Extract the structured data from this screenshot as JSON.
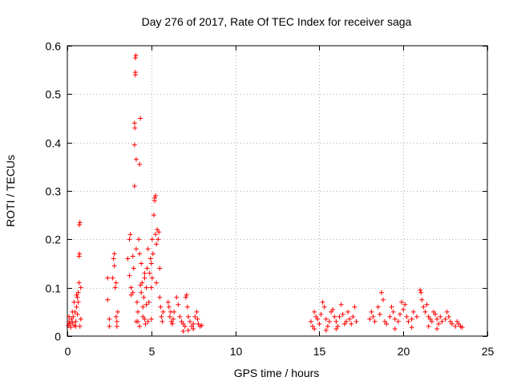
{
  "chart_data": {
    "type": "scatter",
    "title": "Day 276 of 2017, Rate Of TEC Index for receiver saga",
    "xlabel": "GPS time / hours",
    "ylabel": "ROTI / TECUs",
    "xlim": [
      0,
      25
    ],
    "ylim": [
      0,
      0.6
    ],
    "xticks": [
      0,
      5,
      10,
      15,
      20,
      25
    ],
    "yticks": [
      0,
      0.1,
      0.2,
      0.3,
      0.4,
      0.5,
      0.6
    ],
    "grid": true,
    "marker": "+",
    "color": "#ff0000",
    "series": [
      {
        "name": "ROTI",
        "points": [
          [
            0.05,
            0.022
          ],
          [
            0.1,
            0.03
          ],
          [
            0.15,
            0.025
          ],
          [
            0.2,
            0.018
          ],
          [
            0.25,
            0.035
          ],
          [
            0.3,
            0.028
          ],
          [
            0.35,
            0.04
          ],
          [
            0.4,
            0.022
          ],
          [
            0.45,
            0.05
          ],
          [
            0.5,
            0.03
          ],
          [
            0.55,
            0.06
          ],
          [
            0.6,
            0.045
          ],
          [
            0.6,
            0.08
          ],
          [
            0.65,
            0.07
          ],
          [
            0.65,
            0.09
          ],
          [
            0.7,
            0.11
          ],
          [
            0.7,
            0.165
          ],
          [
            0.72,
            0.17
          ],
          [
            0.72,
            0.23
          ],
          [
            0.75,
            0.235
          ],
          [
            0.75,
            0.02
          ],
          [
            0.8,
            0.035
          ],
          [
            0.8,
            0.1
          ],
          [
            0.1,
            0.04
          ],
          [
            0.3,
            0.05
          ],
          [
            0.5,
            0.02
          ],
          [
            0.4,
            0.07
          ],
          [
            0.55,
            0.085
          ],
          [
            2.4,
            0.12
          ],
          [
            2.4,
            0.075
          ],
          [
            2.5,
            0.035
          ],
          [
            2.5,
            0.02
          ],
          [
            2.7,
            0.12
          ],
          [
            2.75,
            0.16
          ],
          [
            2.8,
            0.17
          ],
          [
            2.8,
            0.145
          ],
          [
            2.85,
            0.1
          ],
          [
            2.9,
            0.11
          ],
          [
            2.9,
            0.04
          ],
          [
            2.95,
            0.03
          ],
          [
            2.95,
            0.02
          ],
          [
            3.0,
            0.05
          ],
          [
            3.6,
            0.16
          ],
          [
            3.7,
            0.2
          ],
          [
            3.75,
            0.21
          ],
          [
            3.7,
            0.125
          ],
          [
            3.8,
            0.1
          ],
          [
            3.8,
            0.085
          ],
          [
            3.9,
            0.165
          ],
          [
            3.95,
            0.14
          ],
          [
            4.0,
            0.31
          ],
          [
            4.0,
            0.395
          ],
          [
            4.0,
            0.44
          ],
          [
            4.02,
            0.43
          ],
          [
            4.05,
            0.54
          ],
          [
            4.05,
            0.545
          ],
          [
            4.05,
            0.575
          ],
          [
            4.08,
            0.58
          ],
          [
            4.1,
            0.365
          ],
          [
            4.15,
            0.07
          ],
          [
            4.2,
            0.05
          ],
          [
            4.2,
            0.03
          ],
          [
            4.25,
            0.2
          ],
          [
            4.3,
            0.17
          ],
          [
            4.3,
            0.355
          ],
          [
            4.35,
            0.45
          ],
          [
            4.35,
            0.105
          ],
          [
            4.4,
            0.09
          ],
          [
            4.4,
            0.15
          ],
          [
            4.45,
            0.11
          ],
          [
            4.5,
            0.04
          ],
          [
            4.5,
            0.06
          ],
          [
            4.55,
            0.08
          ],
          [
            4.6,
            0.12
          ],
          [
            4.6,
            0.035
          ],
          [
            4.65,
            0.025
          ],
          [
            4.7,
            0.1
          ],
          [
            4.7,
            0.065
          ],
          [
            4.75,
            0.14
          ],
          [
            4.8,
            0.18
          ],
          [
            4.85,
            0.07
          ],
          [
            4.9,
            0.13
          ],
          [
            4.95,
            0.16
          ],
          [
            5.0,
            0.15
          ],
          [
            5.0,
            0.1
          ],
          [
            5.05,
            0.12
          ],
          [
            5.05,
            0.2
          ],
          [
            5.1,
            0.17
          ],
          [
            5.15,
            0.25
          ],
          [
            5.2,
            0.285
          ],
          [
            5.2,
            0.28
          ],
          [
            5.25,
            0.29
          ],
          [
            5.25,
            0.21
          ],
          [
            5.3,
            0.19
          ],
          [
            5.3,
            0.11
          ],
          [
            5.35,
            0.22
          ],
          [
            5.4,
            0.2
          ],
          [
            5.45,
            0.215
          ],
          [
            5.5,
            0.14
          ],
          [
            5.5,
            0.08
          ],
          [
            5.55,
            0.06
          ],
          [
            5.6,
            0.04
          ],
          [
            5.65,
            0.03
          ],
          [
            5.7,
            0.05
          ],
          [
            4.1,
            0.03
          ],
          [
            4.3,
            0.02
          ],
          [
            4.8,
            0.03
          ],
          [
            5.0,
            0.035
          ],
          [
            3.9,
            0.09
          ],
          [
            4.1,
            0.18
          ],
          [
            4.6,
            0.13
          ],
          [
            6.0,
            0.07
          ],
          [
            6.05,
            0.06
          ],
          [
            6.1,
            0.04
          ],
          [
            6.15,
            0.05
          ],
          [
            6.2,
            0.03
          ],
          [
            6.25,
            0.025
          ],
          [
            6.3,
            0.035
          ],
          [
            6.35,
            0.05
          ],
          [
            6.5,
            0.08
          ],
          [
            6.6,
            0.065
          ],
          [
            6.7,
            0.04
          ],
          [
            6.8,
            0.03
          ],
          [
            6.9,
            0.025
          ],
          [
            7.0,
            0.02
          ],
          [
            7.05,
            0.08
          ],
          [
            7.1,
            0.085
          ],
          [
            7.15,
            0.06
          ],
          [
            7.2,
            0.04
          ],
          [
            7.3,
            0.03
          ],
          [
            7.4,
            0.02
          ],
          [
            7.5,
            0.025
          ],
          [
            7.6,
            0.04
          ],
          [
            7.7,
            0.05
          ],
          [
            7.75,
            0.035
          ],
          [
            7.8,
            0.025
          ],
          [
            7.9,
            0.02
          ],
          [
            8.0,
            0.022
          ],
          [
            6.9,
            0.01
          ],
          [
            7.2,
            0.012
          ],
          [
            7.5,
            0.015
          ],
          [
            14.5,
            0.03
          ],
          [
            14.6,
            0.02
          ],
          [
            14.7,
            0.05
          ],
          [
            14.8,
            0.04
          ],
          [
            14.9,
            0.035
          ],
          [
            15.0,
            0.025
          ],
          [
            15.1,
            0.045
          ],
          [
            15.2,
            0.07
          ],
          [
            15.3,
            0.06
          ],
          [
            15.4,
            0.035
          ],
          [
            15.5,
            0.02
          ],
          [
            15.6,
            0.03
          ],
          [
            15.7,
            0.05
          ],
          [
            15.8,
            0.055
          ],
          [
            15.9,
            0.04
          ],
          [
            16.0,
            0.03
          ],
          [
            16.1,
            0.02
          ],
          [
            16.2,
            0.04
          ],
          [
            16.3,
            0.065
          ],
          [
            16.4,
            0.045
          ],
          [
            16.5,
            0.025
          ],
          [
            16.6,
            0.03
          ],
          [
            16.7,
            0.05
          ],
          [
            16.8,
            0.035
          ],
          [
            16.9,
            0.025
          ],
          [
            17.0,
            0.04
          ],
          [
            17.1,
            0.06
          ],
          [
            17.2,
            0.03
          ],
          [
            14.7,
            0.015
          ],
          [
            15.4,
            0.012
          ],
          [
            16.0,
            0.015
          ],
          [
            18.0,
            0.035
          ],
          [
            18.1,
            0.05
          ],
          [
            18.2,
            0.04
          ],
          [
            18.3,
            0.03
          ],
          [
            18.5,
            0.06
          ],
          [
            18.6,
            0.045
          ],
          [
            18.7,
            0.09
          ],
          [
            18.8,
            0.075
          ],
          [
            18.9,
            0.03
          ],
          [
            19.0,
            0.025
          ],
          [
            19.2,
            0.04
          ],
          [
            19.3,
            0.06
          ],
          [
            19.4,
            0.05
          ],
          [
            19.5,
            0.035
          ],
          [
            19.7,
            0.03
          ],
          [
            19.8,
            0.045
          ],
          [
            19.9,
            0.07
          ],
          [
            20.0,
            0.055
          ],
          [
            20.1,
            0.065
          ],
          [
            20.2,
            0.04
          ],
          [
            20.3,
            0.03
          ],
          [
            20.5,
            0.035
          ],
          [
            20.6,
            0.05
          ],
          [
            20.8,
            0.04
          ],
          [
            21.0,
            0.095
          ],
          [
            21.05,
            0.09
          ],
          [
            21.1,
            0.075
          ],
          [
            21.2,
            0.06
          ],
          [
            21.3,
            0.05
          ],
          [
            21.4,
            0.065
          ],
          [
            21.5,
            0.04
          ],
          [
            21.6,
            0.035
          ],
          [
            21.7,
            0.03
          ],
          [
            21.8,
            0.05
          ],
          [
            21.9,
            0.045
          ],
          [
            22.0,
            0.035
          ],
          [
            22.1,
            0.025
          ],
          [
            22.2,
            0.04
          ],
          [
            22.3,
            0.03
          ],
          [
            22.5,
            0.035
          ],
          [
            22.6,
            0.05
          ],
          [
            22.7,
            0.04
          ],
          [
            22.8,
            0.03
          ],
          [
            22.9,
            0.025
          ],
          [
            23.1,
            0.02
          ],
          [
            23.2,
            0.03
          ],
          [
            23.3,
            0.025
          ],
          [
            23.4,
            0.02
          ],
          [
            23.5,
            0.018
          ],
          [
            19.5,
            0.015
          ],
          [
            20.5,
            0.018
          ],
          [
            21.5,
            0.02
          ],
          [
            22.0,
            0.015
          ]
        ]
      }
    ]
  }
}
